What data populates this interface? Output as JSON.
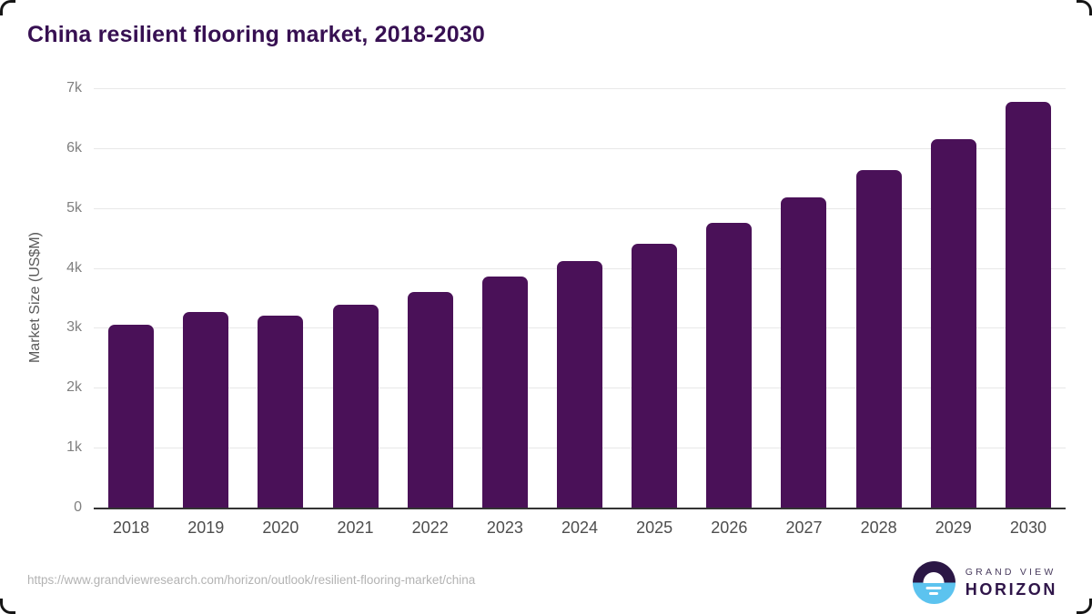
{
  "title": "China resilient flooring market, 2018-2030",
  "chart_data": {
    "type": "bar",
    "title": "China resilient flooring market, 2018-2030",
    "categories": [
      "2018",
      "2019",
      "2020",
      "2021",
      "2022",
      "2023",
      "2024",
      "2025",
      "2026",
      "2027",
      "2028",
      "2029",
      "2030"
    ],
    "values": [
      3050,
      3270,
      3210,
      3390,
      3600,
      3850,
      4120,
      4410,
      4760,
      5180,
      5630,
      6150,
      6780
    ],
    "xlabel": "",
    "ylabel": "Market Size (US$M)",
    "ylim": [
      0,
      7000
    ],
    "yticks": [
      0,
      1000,
      2000,
      3000,
      4000,
      5000,
      6000,
      7000
    ],
    "ytick_labels": [
      "0",
      "1k",
      "2k",
      "3k",
      "4k",
      "5k",
      "6k",
      "7k"
    ],
    "bar_color": "#4a1158",
    "grid": true,
    "legend": false
  },
  "footer": {
    "source_url": "https://www.grandviewresearch.com/horizon/outlook/resilient-flooring-market/china",
    "logo": {
      "line1": "GRAND VIEW",
      "line2": "HORIZON"
    }
  },
  "colors": {
    "title": "#371052",
    "bar": "#4a1158",
    "gridline": "#e8e8e8",
    "axis_line": "#333333",
    "y_tick": "#808080",
    "x_tick": "#4d4d4d",
    "url": "#b3b3b3",
    "logo_purple": "#2b1745",
    "logo_blue": "#5cc3ef"
  }
}
